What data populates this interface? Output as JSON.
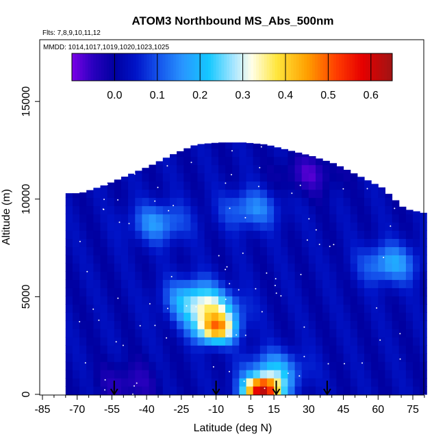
{
  "chart_data": {
    "type": "heatmap",
    "title": "ATOM3 Northbound MS_Abs_500nm",
    "subtitle_flights": "Flts: 7,8,9,10,11,12",
    "subtitle_dates": "MMDD: 1014,1017,1019,1020,1023,1025",
    "xlabel": "Latitude (deg N)",
    "ylabel": "Altitude (m)",
    "xlim": [
      -85,
      80
    ],
    "ylim": [
      0,
      17500
    ],
    "x_ticks": [
      "-85",
      "-70",
      "-55",
      "-40",
      "-25",
      "-10",
      "5",
      "15",
      "30",
      "45",
      "60",
      "75"
    ],
    "x_tick_values": [
      -85,
      -70,
      -55,
      -40,
      -25,
      -10,
      5,
      15,
      30,
      45,
      60,
      75
    ],
    "y_ticks": [
      "0",
      "5000",
      "10000",
      "15000"
    ],
    "y_tick_values": [
      0,
      5000,
      10000,
      15000
    ],
    "colorbar": {
      "min": -0.1,
      "max": 0.65,
      "ticks": [
        "0.0",
        "0.1",
        "0.2",
        "0.3",
        "0.4",
        "0.5",
        "0.6"
      ],
      "tick_values": [
        0.0,
        0.1,
        0.2,
        0.3,
        0.4,
        0.5,
        0.6
      ]
    },
    "arrows_latitude": [
      -54,
      -10,
      16,
      38
    ],
    "profile": {
      "latitudes": [
        -70,
        -60,
        -50,
        -40,
        -30,
        -20,
        -10,
        0,
        10,
        20,
        30,
        40,
        50,
        60,
        70,
        78
      ],
      "top_altitude": [
        10300,
        10700,
        11200,
        11700,
        12300,
        12800,
        12900,
        12900,
        12800,
        12500,
        12200,
        11800,
        11200,
        10600,
        9500,
        9300
      ]
    },
    "features": [
      {
        "lat": -10,
        "alt": 3300,
        "value": 0.36
      },
      {
        "lat": -12,
        "alt": 4200,
        "value": 0.28
      },
      {
        "lat": -20,
        "alt": 5000,
        "value": 0.18
      },
      {
        "lat": -35,
        "alt": 8800,
        "value": 0.16
      },
      {
        "lat": 5,
        "alt": 9500,
        "value": 0.15
      },
      {
        "lat": 10,
        "alt": 200,
        "value": 0.58
      },
      {
        "lat": 15,
        "alt": 1200,
        "value": 0.2
      },
      {
        "lat": -48,
        "alt": 600,
        "value": -0.05
      },
      {
        "lat": 65,
        "alt": 6700,
        "value": 0.18
      },
      {
        "lat": 30,
        "alt": 11300,
        "value": -0.06
      }
    ]
  }
}
